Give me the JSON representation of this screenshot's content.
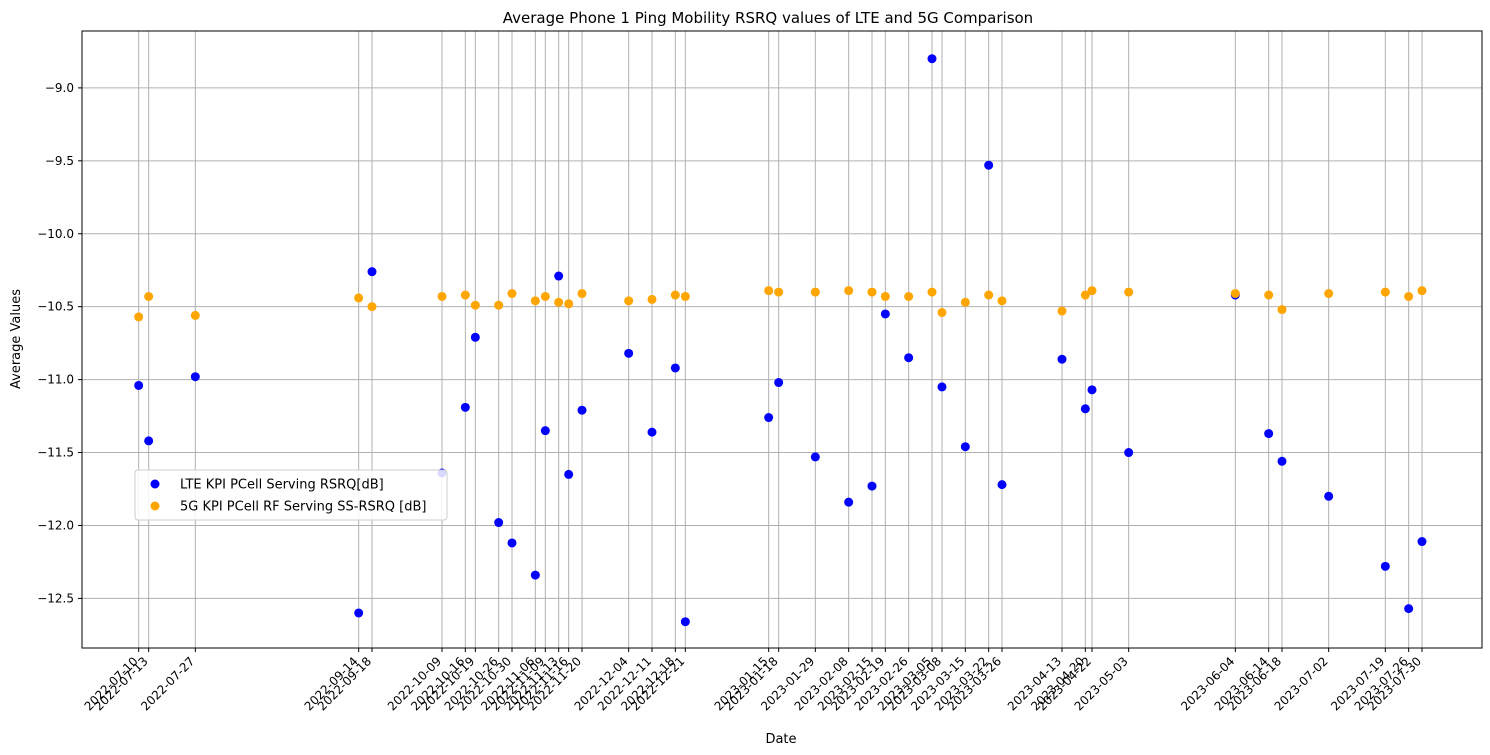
{
  "chart_data": {
    "type": "scatter",
    "title": "Average Phone 1 Ping Mobility RSRQ values of LTE and 5G Comparison",
    "xlabel": "Date",
    "ylabel": "Average Values",
    "xlim": [
      "2022-06-23",
      "2023-08-17"
    ],
    "ylim": [
      -12.84,
      -8.61
    ],
    "yticks": [
      -12.5,
      -12.0,
      -11.5,
      -11.0,
      -10.5,
      -10.0,
      -9.5,
      -9.0
    ],
    "ytick_labels": [
      "−12.5",
      "−12.0",
      "−11.5",
      "−11.0",
      "−10.5",
      "−10.0",
      "−9.5",
      "−9.0"
    ],
    "xticks": [
      "2022-07-10",
      "2022-07-13",
      "2022-07-27",
      "2022-09-14",
      "2022-09-18",
      "2022-10-09",
      "2022-10-16",
      "2022-10-19",
      "2022-10-26",
      "2022-10-30",
      "2022-11-06",
      "2022-11-09",
      "2022-11-13",
      "2022-11-16",
      "2022-11-20",
      "2022-12-04",
      "2022-12-11",
      "2022-12-18",
      "2022-12-21",
      "2023-01-15",
      "2023-01-18",
      "2023-01-29",
      "2023-02-08",
      "2023-02-15",
      "2023-02-19",
      "2023-02-26",
      "2023-03-05",
      "2023-03-08",
      "2023-03-15",
      "2023-03-22",
      "2023-03-26",
      "2023-04-13",
      "2023-04-20",
      "2023-04-22",
      "2023-05-03",
      "2023-06-04",
      "2023-06-14",
      "2023-06-18",
      "2023-07-02",
      "2023-07-19",
      "2023-07-26",
      "2023-07-30"
    ],
    "grid": true,
    "legend_position": "center-left",
    "series": [
      {
        "name": "LTE KPI PCell Serving RSRQ[dB]",
        "color": "#0000ff",
        "x": [
          "2022-07-10",
          "2022-07-13",
          "2022-07-27",
          "2022-09-14",
          "2022-09-18",
          "2022-10-09",
          "2022-10-16",
          "2022-10-19",
          "2022-10-26",
          "2022-10-30",
          "2022-11-06",
          "2022-11-09",
          "2022-11-13",
          "2022-11-16",
          "2022-11-20",
          "2022-12-04",
          "2022-12-11",
          "2022-12-18",
          "2022-12-21",
          "2023-01-15",
          "2023-01-18",
          "2023-01-29",
          "2023-02-08",
          "2023-02-15",
          "2023-02-19",
          "2023-02-26",
          "2023-03-05",
          "2023-03-08",
          "2023-03-15",
          "2023-03-22",
          "2023-03-26",
          "2023-04-13",
          "2023-04-20",
          "2023-04-22",
          "2023-05-03",
          "2023-06-04",
          "2023-06-14",
          "2023-06-18",
          "2023-07-02",
          "2023-07-19",
          "2023-07-26",
          "2023-07-30"
        ],
        "y": [
          -11.04,
          -11.42,
          -10.98,
          -12.6,
          -10.26,
          -11.64,
          -11.19,
          -10.71,
          -11.98,
          -12.12,
          -12.34,
          -11.35,
          -10.29,
          -11.65,
          -11.21,
          -10.82,
          -11.36,
          -10.92,
          -12.66,
          -11.26,
          -11.02,
          -11.53,
          -11.84,
          -11.73,
          -10.55,
          -10.85,
          -8.8,
          -11.05,
          -11.46,
          -9.53,
          -11.72,
          -10.86,
          -11.2,
          -11.07,
          -11.5,
          -10.42,
          -11.37,
          -11.56,
          -11.8,
          -12.28,
          -12.57,
          -12.11
        ]
      },
      {
        "name": "5G KPI PCell RF Serving SS-RSRQ [dB]",
        "color": "#ffa500",
        "x": [
          "2022-07-10",
          "2022-07-13",
          "2022-07-27",
          "2022-09-14",
          "2022-09-18",
          "2022-10-09",
          "2022-10-16",
          "2022-10-19",
          "2022-10-26",
          "2022-10-30",
          "2022-11-06",
          "2022-11-09",
          "2022-11-13",
          "2022-11-16",
          "2022-11-20",
          "2022-12-04",
          "2022-12-11",
          "2022-12-18",
          "2022-12-21",
          "2023-01-15",
          "2023-01-18",
          "2023-01-29",
          "2023-02-08",
          "2023-02-15",
          "2023-02-19",
          "2023-02-26",
          "2023-03-05",
          "2023-03-08",
          "2023-03-15",
          "2023-03-22",
          "2023-03-26",
          "2023-04-13",
          "2023-04-20",
          "2023-04-22",
          "2023-05-03",
          "2023-06-04",
          "2023-06-14",
          "2023-06-18",
          "2023-07-02",
          "2023-07-19",
          "2023-07-26",
          "2023-07-30"
        ],
        "y": [
          -10.57,
          -10.43,
          -10.56,
          -10.44,
          -10.5,
          -10.43,
          -10.42,
          -10.49,
          -10.49,
          -10.41,
          -10.46,
          -10.43,
          -10.47,
          -10.48,
          -10.41,
          -10.46,
          -10.45,
          -10.42,
          -10.43,
          -10.39,
          -10.4,
          -10.4,
          -10.39,
          -10.4,
          -10.43,
          -10.43,
          -10.4,
          -10.54,
          -10.47,
          -10.42,
          -10.46,
          -10.53,
          -10.42,
          -10.39,
          -10.4,
          -10.41,
          -10.42,
          -10.52,
          -10.41,
          -10.4,
          -10.43,
          -10.39
        ]
      }
    ]
  }
}
